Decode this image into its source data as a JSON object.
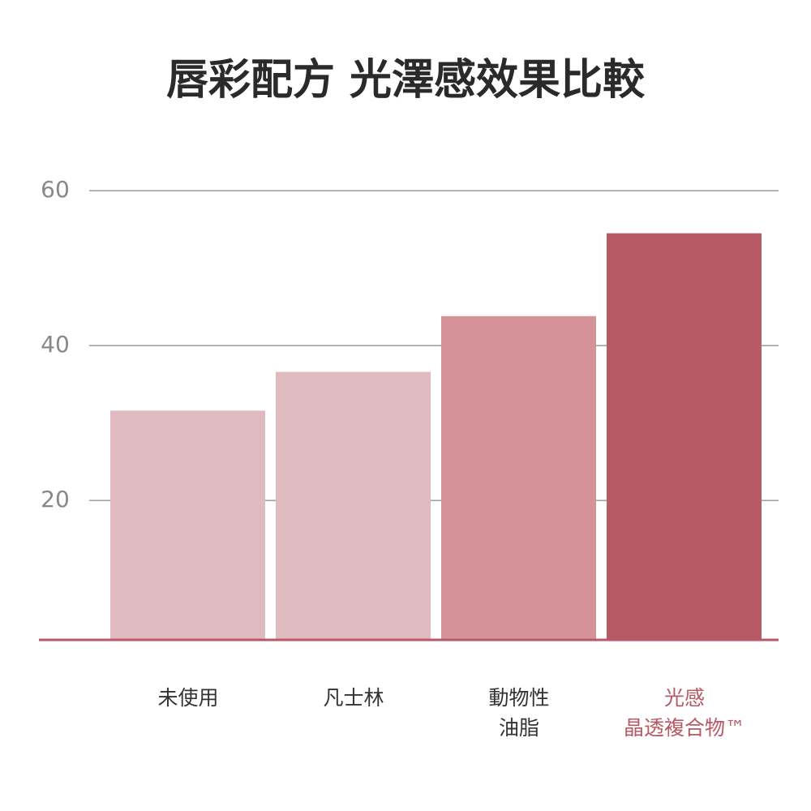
{
  "chart_data": {
    "type": "bar",
    "title": "唇彩配方 光澤感效果比較",
    "categories": [
      "未使用",
      "凡士林",
      "動物性\n油脂",
      "光感\n晶透複合物™"
    ],
    "values": [
      31.6,
      36.6,
      43.8,
      54.5
    ],
    "colors": [
      "#dfbabe",
      "#dfbabe",
      "#d69299",
      "#b85a66"
    ],
    "label_colors": [
      "#333333",
      "#333333",
      "#333333",
      "#b85a66"
    ],
    "ylim": [
      2,
      62
    ],
    "yticks": [
      20,
      40,
      60
    ],
    "grid": true
  }
}
